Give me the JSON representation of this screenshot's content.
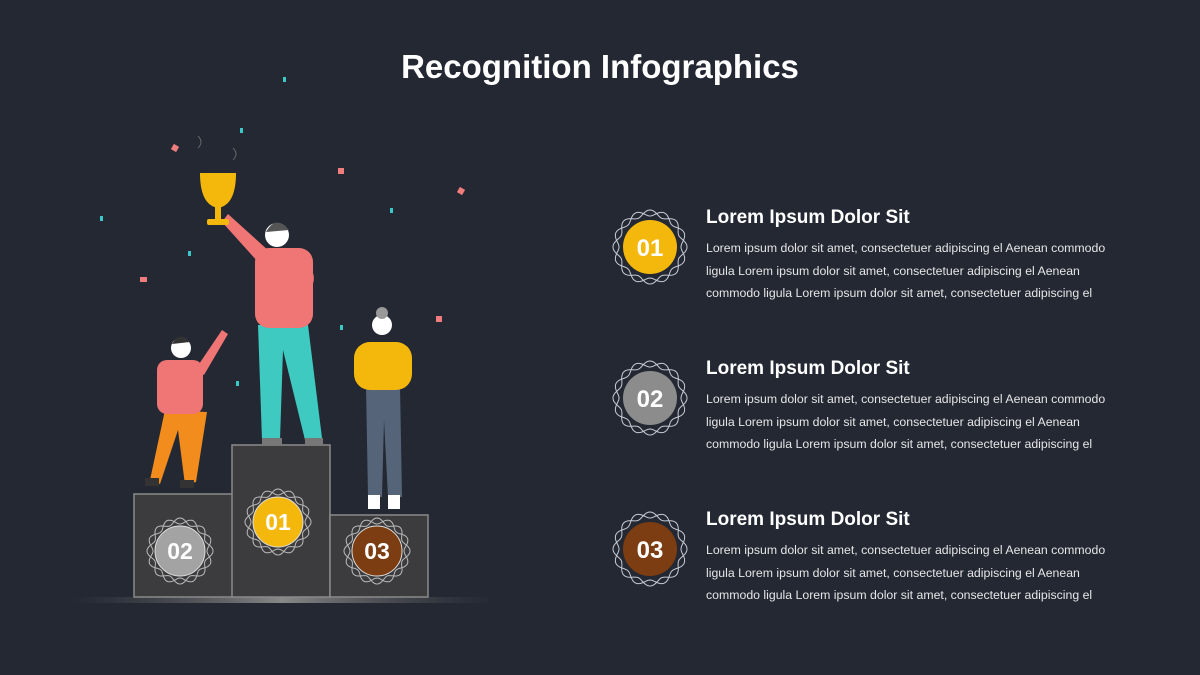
{
  "title": "Recognition Infographics",
  "colors": {
    "background": "#232833",
    "gold": "#f4b80d",
    "silver": "#9a9a9a",
    "bronze": "#7c3d12",
    "podium": "#3c3c3e"
  },
  "podium": [
    {
      "rank": "02",
      "color": "#a3a3a3"
    },
    {
      "rank": "01",
      "color": "#f4b80d"
    },
    {
      "rank": "03",
      "color": "#7c3d12"
    }
  ],
  "items": [
    {
      "number": "01",
      "color": "#f4b80d",
      "heading": "Lorem Ipsum Dolor Sit",
      "text": "Lorem ipsum dolor sit amet, consectetuer adipiscing el Aenean commodo ligula Lorem ipsum dolor sit amet, consectetuer adipiscing el Aenean commodo ligula Lorem ipsum dolor sit amet, consectetuer adipiscing el"
    },
    {
      "number": "02",
      "color": "#8c8c8c",
      "heading": "Lorem Ipsum Dolor Sit",
      "text": "Lorem ipsum dolor sit amet, consectetuer adipiscing el Aenean commodo ligula Lorem ipsum dolor sit amet, consectetuer adipiscing el Aenean commodo ligula Lorem ipsum dolor sit amet, consectetuer adipiscing el"
    },
    {
      "number": "03",
      "color": "#7c3d12",
      "heading": "Lorem Ipsum Dolor Sit",
      "text": "Lorem ipsum dolor sit amet, consectetuer adipiscing el Aenean commodo ligula Lorem ipsum dolor sit amet, consectetuer adipiscing el Aenean commodo ligula Lorem ipsum dolor sit amet, consectetuer adipiscing el"
    }
  ]
}
